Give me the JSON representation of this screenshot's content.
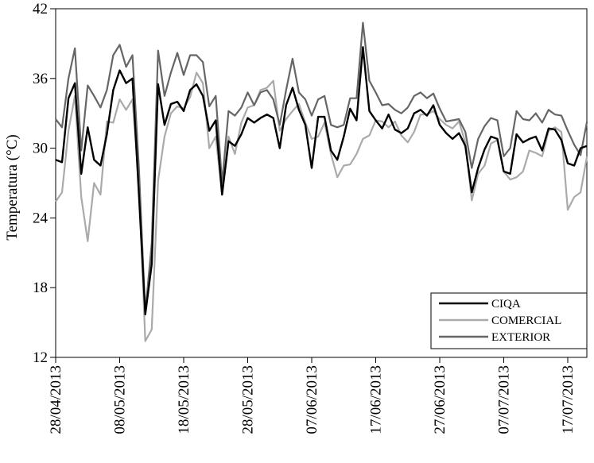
{
  "chart_data": {
    "type": "line",
    "xlabel": "",
    "ylabel": "Temperatura (°C)",
    "ylim": [
      12,
      42
    ],
    "yticks": [
      12,
      18,
      24,
      30,
      36,
      42
    ],
    "x_start": "28/04/2013",
    "x_tick_labels": [
      "28/04/2013",
      "08/05/2013",
      "18/05/2013",
      "28/05/2013",
      "07/06/2013",
      "17/06/2013",
      "27/06/2013",
      "07/07/2013",
      "17/07/2013"
    ],
    "grid": false,
    "legend_position": "bottom-right",
    "x": [
      "28/04/2013",
      "29/04/2013",
      "30/04/2013",
      "01/05/2013",
      "02/05/2013",
      "03/05/2013",
      "04/05/2013",
      "05/05/2013",
      "06/05/2013",
      "07/05/2013",
      "08/05/2013",
      "09/05/2013",
      "10/05/2013",
      "11/05/2013",
      "12/05/2013",
      "13/05/2013",
      "14/05/2013",
      "15/05/2013",
      "16/05/2013",
      "17/05/2013",
      "18/05/2013",
      "19/05/2013",
      "20/05/2013",
      "21/05/2013",
      "22/05/2013",
      "23/05/2013",
      "24/05/2013",
      "25/05/2013",
      "26/05/2013",
      "27/05/2013",
      "28/05/2013",
      "29/05/2013",
      "30/05/2013",
      "31/05/2013",
      "01/06/2013",
      "02/06/2013",
      "03/06/2013",
      "04/06/2013",
      "05/06/2013",
      "06/06/2013",
      "07/06/2013",
      "08/06/2013",
      "09/06/2013",
      "10/06/2013",
      "11/06/2013",
      "12/06/2013",
      "13/06/2013",
      "14/06/2013",
      "15/06/2013",
      "16/06/2013",
      "17/06/2013",
      "18/06/2013",
      "19/06/2013",
      "20/06/2013",
      "21/06/2013",
      "22/06/2013",
      "23/06/2013",
      "24/06/2013",
      "25/06/2013",
      "26/06/2013",
      "27/06/2013",
      "28/06/2013",
      "29/06/2013",
      "30/06/2013",
      "01/07/2013",
      "02/07/2013",
      "03/07/2013",
      "04/07/2013",
      "05/07/2013",
      "06/07/2013",
      "07/07/2013",
      "08/07/2013",
      "09/07/2013",
      "10/07/2013",
      "11/07/2013",
      "12/07/2013",
      "13/07/2013",
      "14/07/2013",
      "15/07/2013",
      "16/07/2013",
      "17/07/2013",
      "18/07/2013",
      "19/07/2013",
      "20/07/2013"
    ],
    "series": [
      {
        "name": "CIQA",
        "color": "#000000",
        "values": [
          29.0,
          28.8,
          34.3,
          35.6,
          27.8,
          31.8,
          29.0,
          28.5,
          31.2,
          35.0,
          36.7,
          35.6,
          36.0,
          26.0,
          15.7,
          20.0,
          35.5,
          32.0,
          33.8,
          34.0,
          33.2,
          35.0,
          35.5,
          34.5,
          31.5,
          32.4,
          26.0,
          30.6,
          30.2,
          31.2,
          32.6,
          32.2,
          32.6,
          32.9,
          32.6,
          30.0,
          33.7,
          35.2,
          33.3,
          32.0,
          28.3,
          32.7,
          32.7,
          29.8,
          29.0,
          31.0,
          33.4,
          32.4,
          38.7,
          33.2,
          32.4,
          31.7,
          32.9,
          31.6,
          31.3,
          31.7,
          33.0,
          33.3,
          32.8,
          33.7,
          32.0,
          31.3,
          30.8,
          31.3,
          30.2,
          26.2,
          28.3,
          29.9,
          31.0,
          30.8,
          28.0,
          27.8,
          31.2,
          30.5,
          30.8,
          31.0,
          29.8,
          31.7,
          31.6,
          30.7,
          28.7,
          28.5,
          30.0,
          30.2
        ]
      },
      {
        "name": "COMERCIAL",
        "color": "#aaaaaa",
        "values": [
          25.4,
          26.2,
          31.5,
          34.5,
          25.8,
          22.0,
          27.0,
          26.0,
          32.3,
          32.2,
          34.2,
          33.3,
          34.2,
          27.0,
          13.4,
          14.4,
          27.2,
          31.0,
          33.0,
          33.6,
          33.4,
          34.4,
          36.5,
          35.6,
          30.0,
          31.0,
          26.0,
          31.0,
          29.5,
          32.2,
          33.5,
          33.7,
          35.0,
          35.2,
          35.8,
          31.5,
          32.5,
          33.2,
          33.8,
          32.2,
          30.8,
          31.0,
          32.2,
          29.5,
          27.5,
          28.5,
          28.6,
          29.5,
          30.8,
          31.1,
          32.4,
          32.3,
          31.8,
          32.3,
          31.1,
          30.5,
          31.4,
          32.9,
          32.9,
          33.2,
          32.5,
          32.0,
          31.7,
          32.3,
          30.5,
          25.5,
          27.8,
          28.5,
          30.4,
          30.7,
          28.0,
          27.3,
          27.5,
          28.0,
          29.8,
          29.6,
          29.3,
          31.5,
          31.8,
          31.4,
          24.7,
          25.8,
          26.2,
          29.3
        ]
      },
      {
        "name": "EXTERIOR",
        "color": "#666666",
        "values": [
          32.5,
          31.8,
          36.0,
          38.6,
          29.8,
          35.4,
          34.5,
          33.5,
          35.0,
          38.0,
          38.9,
          37.0,
          38.0,
          28.3,
          15.8,
          21.8,
          38.4,
          34.5,
          36.5,
          38.2,
          36.3,
          38.0,
          38.0,
          37.4,
          33.6,
          34.5,
          27.0,
          33.2,
          32.8,
          33.5,
          34.8,
          33.7,
          34.8,
          35.0,
          34.2,
          32.0,
          35.0,
          37.7,
          34.8,
          34.2,
          32.8,
          34.2,
          34.5,
          32.0,
          31.8,
          32.0,
          34.3,
          34.3,
          40.8,
          35.8,
          34.8,
          33.7,
          33.8,
          33.3,
          33.0,
          33.5,
          34.5,
          34.8,
          34.3,
          34.7,
          33.4,
          32.3,
          32.4,
          32.5,
          31.4,
          28.3,
          30.8,
          31.9,
          32.6,
          32.4,
          29.3,
          30.0,
          33.2,
          32.5,
          32.4,
          33.0,
          32.2,
          33.3,
          32.9,
          32.8,
          31.5,
          30.3,
          29.4,
          32.3
        ]
      }
    ]
  }
}
